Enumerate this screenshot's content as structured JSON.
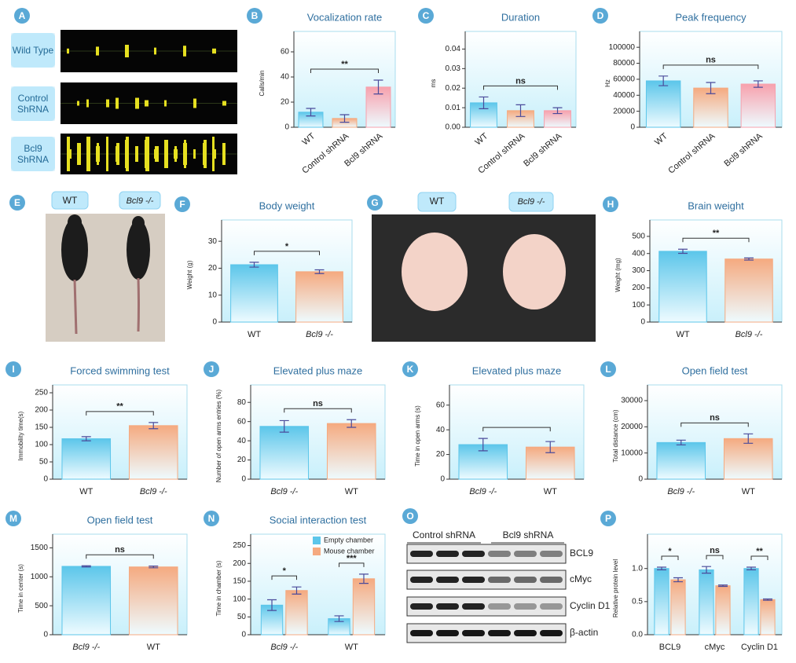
{
  "figures": [
    {
      "panel": "A",
      "labels": [
        "Wild Type",
        "Control ShRNA",
        "Bcl9 ShRNA"
      ]
    },
    {
      "panel": "E",
      "labels": [
        "WT",
        "Bcl9 -/-"
      ]
    },
    {
      "panel": "G",
      "labels": [
        "WT",
        "Bcl9 -/-"
      ]
    },
    {
      "panel": "O",
      "groups": [
        "Control shRNA",
        "Bcl9 shRNA"
      ],
      "proteins": [
        "BCL9",
        "cMyc",
        "Cyclin D1",
        "β-actin"
      ]
    }
  ],
  "chart_data": [
    {
      "panel": "B",
      "type": "bar",
      "title": "Vocalization rate",
      "ylabel": "Calls/min",
      "categories": [
        "WT",
        "Control shRNA",
        "Bcl9 shRNA"
      ],
      "values": [
        12,
        7,
        32
      ],
      "errors": [
        3,
        3,
        5.5
      ],
      "colors": [
        "#5cc6ea",
        "#f5aa80",
        "#f7a1ad"
      ],
      "ylim": [
        0,
        70
      ],
      "yticks": [
        0,
        20,
        40,
        60
      ],
      "xtick_rotation": -40,
      "significance": [
        {
          "from": 0,
          "to": 2,
          "label": "**"
        }
      ]
    },
    {
      "panel": "C",
      "type": "bar",
      "title": "Duration",
      "ylabel": "ms",
      "categories": [
        "WT",
        "Control shRNA",
        "Bcl9 shRNA"
      ],
      "values": [
        0.0125,
        0.0085,
        0.0085
      ],
      "errors": [
        0.003,
        0.003,
        0.0015
      ],
      "colors": [
        "#5cc6ea",
        "#f5aa80",
        "#f7a1ad"
      ],
      "ylim": [
        0,
        0.045
      ],
      "yticks": [
        {
          "value": 0,
          "label": "0.00"
        },
        {
          "value": 0.01,
          "label": "0.01"
        },
        {
          "value": 0.02,
          "label": "0.02"
        },
        {
          "value": 0.03,
          "label": "0.03"
        },
        {
          "value": 0.04,
          "label": "0.04"
        }
      ],
      "xtick_rotation": -40,
      "significance": [
        {
          "from": 0,
          "to": 2,
          "label": "ns"
        }
      ]
    },
    {
      "panel": "D",
      "type": "bar",
      "title": "Peak frequency",
      "ylabel": "Hz",
      "categories": [
        "WT",
        "Control shRNA",
        "Bcl9 shRNA"
      ],
      "values": [
        58000,
        49000,
        54000
      ],
      "errors": [
        6000,
        7000,
        4000
      ],
      "colors": [
        "#5cc6ea",
        "#f5aa80",
        "#f7a1ad"
      ],
      "ylim": [
        0,
        110000
      ],
      "yticks": [
        0,
        20000,
        40000,
        60000,
        80000,
        100000
      ],
      "xtick_rotation": -40,
      "significance": [
        {
          "from": 0,
          "to": 2,
          "label": "ns"
        }
      ]
    },
    {
      "panel": "F",
      "type": "bar",
      "title": "Body weight",
      "ylabel": "Weight (g)",
      "categories": [
        "WT",
        "Bcl9 -/-"
      ],
      "values": [
        21.3,
        18.7
      ],
      "errors": [
        0.9,
        0.7
      ],
      "colors": [
        "#5cc6ea",
        "#f5aa80"
      ],
      "ylim": [
        0,
        35
      ],
      "yticks": [
        0,
        10,
        20,
        30
      ],
      "significance": [
        {
          "from": 0,
          "to": 1,
          "label": "*"
        }
      ]
    },
    {
      "panel": "H",
      "type": "bar",
      "title": "Brain weight",
      "ylabel": "Weight (mg)",
      "categories": [
        "WT",
        "Bcl9 -/-"
      ],
      "values": [
        413,
        368
      ],
      "errors": [
        12,
        6
      ],
      "colors": [
        "#5cc6ea",
        "#f5aa80"
      ],
      "ylim": [
        0,
        550
      ],
      "yticks": [
        0,
        100,
        200,
        300,
        400,
        500
      ],
      "significance": [
        {
          "from": 0,
          "to": 1,
          "label": "**"
        }
      ]
    },
    {
      "panel": "I",
      "type": "bar",
      "title": "Forced swimming test",
      "ylabel": "Immobility time(s)",
      "categories": [
        "WT",
        "Bcl9 -/-"
      ],
      "values": [
        117,
        155
      ],
      "errors": [
        6,
        9
      ],
      "colors": [
        "#5cc6ea",
        "#f5aa80"
      ],
      "ylim": [
        0,
        250
      ],
      "yticks": [
        0,
        50,
        100,
        150,
        200,
        250
      ],
      "significance": [
        {
          "from": 0,
          "to": 1,
          "label": "**"
        }
      ]
    },
    {
      "panel": "J",
      "type": "bar",
      "title": "Elevated plus maze",
      "ylabel": "Number of open arms entries (%)",
      "categories": [
        "Bcl9 -/-",
        "WT"
      ],
      "values": [
        55,
        58
      ],
      "errors": [
        6,
        4
      ],
      "colors": [
        "#5cc6ea",
        "#f5aa80"
      ],
      "ylim": [
        0,
        90
      ],
      "yticks": [
        0,
        20,
        40,
        60,
        80
      ],
      "significance": [
        {
          "from": 0,
          "to": 1,
          "label": "ns"
        }
      ]
    },
    {
      "panel": "K",
      "type": "bar",
      "title": "Elevated plus maze",
      "ylabel": "Time in open arms (s)",
      "categories": [
        "Bcl9 -/-",
        "WT"
      ],
      "values": [
        28,
        26
      ],
      "errors": [
        5,
        4.5
      ],
      "colors": [
        "#5cc6ea",
        "#f5aa80"
      ],
      "ylim": [
        0,
        70
      ],
      "yticks": [
        0,
        20,
        40,
        60
      ],
      "significance": [
        {
          "from": 0,
          "to": 1
        }
      ]
    },
    {
      "panel": "L",
      "type": "bar",
      "title": "Open field test",
      "ylabel": "Total distance (cm)",
      "categories": [
        "Bcl9 -/-",
        "WT"
      ],
      "values": [
        14000,
        15500
      ],
      "errors": [
        900,
        1800
      ],
      "colors": [
        "#5cc6ea",
        "#f5aa80"
      ],
      "ylim": [
        0,
        33000
      ],
      "yticks": [
        0,
        10000,
        20000,
        30000
      ],
      "significance": [
        {
          "from": 0,
          "to": 1,
          "label": "ns"
        }
      ]
    },
    {
      "panel": "M",
      "type": "bar",
      "title": "Open field test",
      "ylabel": "Time in center (s)",
      "categories": [
        "Bcl9 -/-",
        "WT"
      ],
      "values": [
        1180,
        1170
      ],
      "errors": [
        10,
        15
      ],
      "colors": [
        "#5cc6ea",
        "#f5aa80"
      ],
      "ylim": [
        0,
        1600
      ],
      "yticks": [
        0,
        500,
        1000,
        1500
      ],
      "significance": [
        {
          "from": 0,
          "to": 1,
          "label": "ns"
        }
      ]
    },
    {
      "panel": "N",
      "type": "grouped-bar",
      "title": "Social interaction test",
      "ylabel": "Time in chamber (s)",
      "categories": [
        "Bcl9 -/-",
        "WT"
      ],
      "series": [
        {
          "name": "Empty chamber",
          "color": "#5cc6ea",
          "values": [
            83,
            45
          ],
          "errors": [
            15,
            8
          ]
        },
        {
          "name": "Mouse chamber",
          "color": "#f5aa80",
          "values": [
            124,
            157
          ],
          "errors": [
            10,
            13
          ]
        }
      ],
      "ylim": [
        0,
        260
      ],
      "yticks": [
        0,
        50,
        100,
        150,
        200,
        250
      ],
      "legend": "top-right",
      "significance": [
        {
          "category": 0,
          "label": "*"
        },
        {
          "category": 1,
          "label": "***"
        }
      ]
    },
    {
      "panel": "P",
      "type": "grouped-bar",
      "ylabel": "Relative protein level",
      "categories": [
        "BCL9",
        "cMyc",
        "Cyclin D1"
      ],
      "series": [
        {
          "color": "#5cc6ea",
          "values": [
            1.0,
            0.98,
            1.0
          ],
          "errors": [
            0.02,
            0.05,
            0.02
          ]
        },
        {
          "color": "#f5aa80",
          "values": [
            0.83,
            0.74,
            0.53
          ],
          "errors": [
            0.03,
            0.01,
            0.01
          ]
        }
      ],
      "ylim": [
        0,
        1.4
      ],
      "yticks": [
        {
          "value": 0,
          "label": "0.0"
        },
        {
          "value": 0.5,
          "label": "0.5"
        },
        {
          "value": 1,
          "label": "1.0"
        }
      ],
      "significance": [
        {
          "category": 0,
          "label": "*"
        },
        {
          "category": 1,
          "label": "ns"
        },
        {
          "category": 2,
          "label": "**"
        }
      ]
    }
  ]
}
